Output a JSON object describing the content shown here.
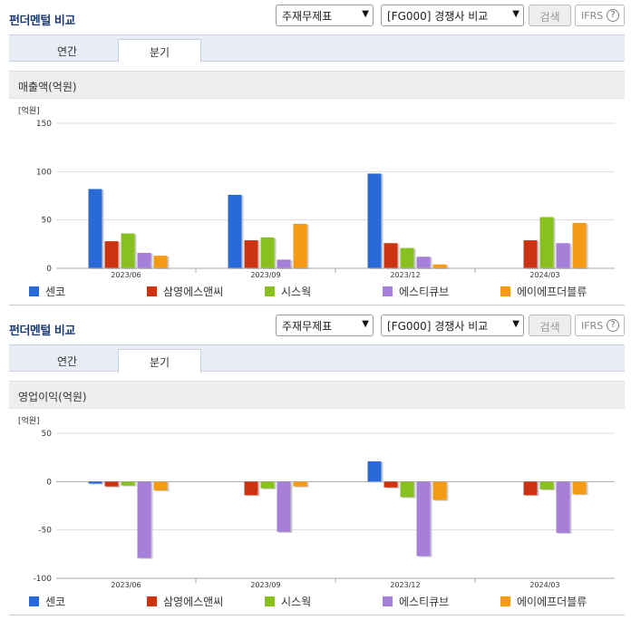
{
  "panels": [
    {
      "title": "펀더멘털 비교",
      "select1": "주재무제표",
      "select2": "[FG000] 경쟁사 비교",
      "search_label": "검색",
      "ifrs_label": "IFRS",
      "ifrs_help": "?",
      "tabs": [
        "연간",
        "분기"
      ],
      "section_title": "매출액(억원)",
      "unit_label": "[억원]"
    },
    {
      "title": "펀더멘털 비교",
      "select1": "주재무제표",
      "select2": "[FG000] 경쟁사 비교",
      "search_label": "검색",
      "ifrs_label": "IFRS",
      "ifrs_help": "?",
      "tabs": [
        "연간",
        "분기"
      ],
      "section_title": "영업이익(억원)",
      "unit_label": "[억원]"
    }
  ],
  "colors": [
    "#2a6ad8",
    "#cc3311",
    "#88c020",
    "#a67fd8",
    "#f49a14"
  ],
  "chart_data": [
    {
      "type": "bar",
      "title": "매출액(억원)",
      "ylabel": "[억원]",
      "ylim": [
        0,
        150
      ],
      "yticks": [
        0,
        50,
        100,
        150
      ],
      "categories": [
        "2023/06",
        "2023/09",
        "2023/12",
        "2024/03"
      ],
      "legend_position": "bottom",
      "series": [
        {
          "name": "센코",
          "values": [
            82,
            76,
            98,
            null
          ]
        },
        {
          "name": "삼영에스앤씨",
          "values": [
            28,
            29,
            26,
            29
          ]
        },
        {
          "name": "시스웍",
          "values": [
            36,
            32,
            21,
            53
          ]
        },
        {
          "name": "에스티큐브",
          "values": [
            16,
            9,
            12,
            26
          ]
        },
        {
          "name": "에이에프더블류",
          "values": [
            13,
            46,
            4,
            47
          ]
        }
      ]
    },
    {
      "type": "bar",
      "title": "영업이익(억원)",
      "ylabel": "[억원]",
      "ylim": [
        -100,
        50
      ],
      "yticks": [
        -100,
        -50,
        0,
        50
      ],
      "categories": [
        "2023/06",
        "2023/09",
        "2023/12",
        "2024/03"
      ],
      "legend_position": "bottom",
      "series": [
        {
          "name": "센코",
          "values": [
            -2,
            null,
            21,
            null
          ]
        },
        {
          "name": "삼영에스앤씨",
          "values": [
            -5,
            -14,
            -6,
            -14
          ]
        },
        {
          "name": "시스웍",
          "values": [
            -4,
            -7,
            -16,
            -8
          ]
        },
        {
          "name": "에스티큐브",
          "values": [
            -79,
            -52,
            -77,
            -53
          ]
        },
        {
          "name": "에이에프더블류",
          "values": [
            -9,
            -5,
            -19,
            -13
          ]
        }
      ]
    }
  ]
}
